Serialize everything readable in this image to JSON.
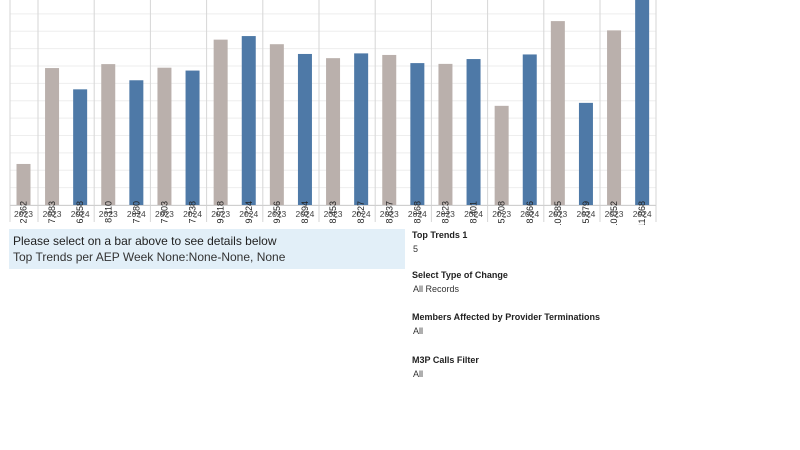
{
  "chart_data": {
    "type": "bar",
    "ylim": [
      0,
      11800
    ],
    "groups": [
      {
        "bars": [
          {
            "year": "2023",
            "value": 2362
          }
        ]
      },
      {
        "bars": [
          {
            "year": "2023",
            "value": 7883
          },
          {
            "year": "2024",
            "value": 6658
          }
        ]
      },
      {
        "bars": [
          {
            "year": "2023",
            "value": 8110
          },
          {
            "year": "2024",
            "value": 7180
          }
        ]
      },
      {
        "bars": [
          {
            "year": "2023",
            "value": 7903
          },
          {
            "year": "2024",
            "value": 7738
          }
        ]
      },
      {
        "bars": [
          {
            "year": "2023",
            "value": 9518
          },
          {
            "year": "2024",
            "value": 9724
          }
        ]
      },
      {
        "bars": [
          {
            "year": "2023",
            "value": 9256
          },
          {
            "year": "2024",
            "value": 8694
          }
        ]
      },
      {
        "bars": [
          {
            "year": "2023",
            "value": 8453
          },
          {
            "year": "2024",
            "value": 8727
          }
        ]
      },
      {
        "bars": [
          {
            "year": "2023",
            "value": 8637
          },
          {
            "year": "2024",
            "value": 8168
          }
        ]
      },
      {
        "bars": [
          {
            "year": "2023",
            "value": 8123
          },
          {
            "year": "2024",
            "value": 8401
          }
        ]
      },
      {
        "bars": [
          {
            "year": "2023",
            "value": 5708
          },
          {
            "year": "2024",
            "value": 8666
          }
        ]
      },
      {
        "bars": [
          {
            "year": "2023",
            "value": 10585
          },
          {
            "year": "2024",
            "value": 5879
          }
        ]
      },
      {
        "bars": [
          {
            "year": "2023",
            "value": 10052
          },
          {
            "year": "2024",
            "value": 11868
          }
        ]
      }
    ],
    "colors": {
      "2023": "#bab0ac",
      "2024": "#4e79a7"
    }
  },
  "info": {
    "line1": "Please select on a bar above to see details below",
    "line2": "Top Trends per AEP Week None:None-None, None"
  },
  "filters": [
    {
      "title": "Top Trends 1",
      "value": "5"
    },
    {
      "title": "Select Type of Change",
      "value": "All Records"
    },
    {
      "title": "Members Affected by Provider Terminations",
      "value": "All"
    },
    {
      "title": "M3P Calls Filter",
      "value": "All"
    }
  ]
}
